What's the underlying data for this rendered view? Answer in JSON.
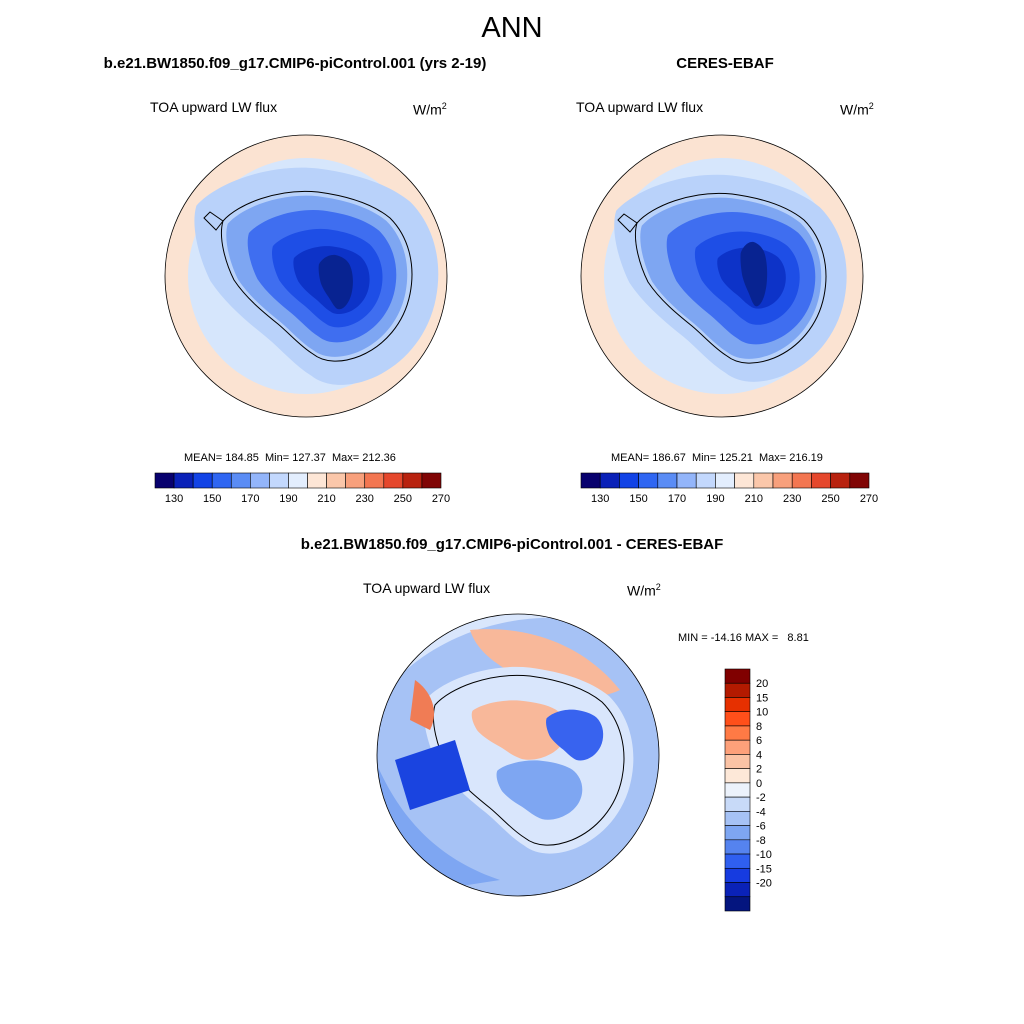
{
  "main_title": "ANN",
  "panels": [
    {
      "title": "b.e21.BW1850.f09_g17.CMIP6-piControl.001 (yrs 2-19)",
      "variable": "TOA upward LW flux",
      "units_base": "W/m",
      "units_exp": "2",
      "stats": "MEAN= 184.85  Min= 127.37  Max= 212.36"
    },
    {
      "title": "CERES-EBAF",
      "variable": "TOA upward LW flux",
      "units_base": "W/m",
      "units_exp": "2",
      "stats": "MEAN= 186.67  Min= 125.21  Max= 216.19"
    },
    {
      "title": "b.e21.BW1850.f09_g17.CMIP6-piControl.001 - CERES-EBAF",
      "variable": "TOA upward LW flux",
      "units_base": "W/m",
      "units_exp": "2",
      "stats": "MIN = -14.16 MAX =   8.81"
    }
  ],
  "flux_colorbar": {
    "colors": [
      "#08016e",
      "#0a21b8",
      "#1243e6",
      "#2f66f2",
      "#5a8cf5",
      "#93b5fa",
      "#c3d8fd",
      "#e3eefe",
      "#fde6d6",
      "#fbc7aa",
      "#f8a07c",
      "#f37651",
      "#e5472c",
      "#b8220f",
      "#800505"
    ],
    "tick_labels": [
      "130",
      "150",
      "170",
      "190",
      "210",
      "230",
      "250",
      "270"
    ]
  },
  "diff_colorbar": {
    "colors": [
      "#800000",
      "#b31a00",
      "#e63000",
      "#ff4f1a",
      "#ff7a45",
      "#fda07a",
      "#fbc3a5",
      "#fde8d8",
      "#ecf2fb",
      "#c8daf8",
      "#a6c2f5",
      "#7ea6f2",
      "#5583ef",
      "#2f5ff0",
      "#163be0",
      "#0a22b8",
      "#04157f"
    ],
    "tick_labels": [
      "20",
      "15",
      "10",
      "8",
      "6",
      "4",
      "2",
      "0",
      "-2",
      "-4",
      "-6",
      "-8",
      "-10",
      "-15",
      "-20"
    ]
  },
  "map_colors": {
    "outer_warm": "#fbe3d2",
    "ocean": "#d6e6fc",
    "coast_band": "#b9d2fa",
    "interior_1": "#7ea6f2",
    "interior_2": "#3f6ef0",
    "interior_3": "#1e4ee6",
    "interior_4": "#0d33c8",
    "core": "#082391",
    "diff_base": "#a6c2f5",
    "diff_mid": "#7ea6f2",
    "diff_light": "#d9e6fc",
    "diff_warm": "#f8b89a",
    "diff_warm_strong": "#f07c55",
    "diff_blue": "#3863ef",
    "diff_dark": "#1a44e0"
  }
}
